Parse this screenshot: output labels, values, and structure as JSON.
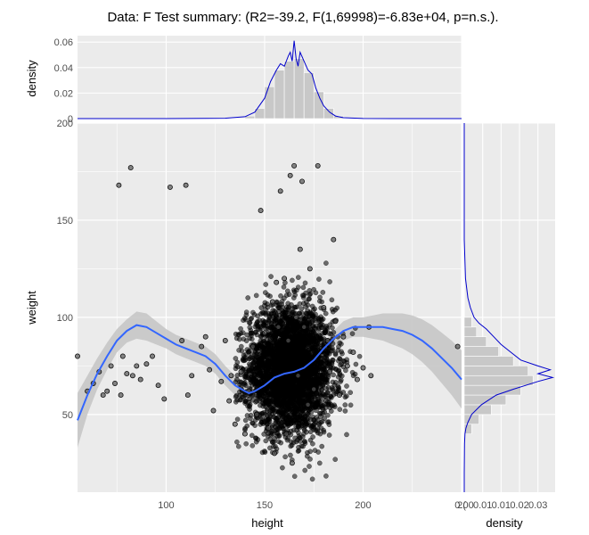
{
  "chart_data": {
    "type": "scatter",
    "title": "Data: F Test summary: (R2=-39.2, F(1,69998)=-6.83e+04, p=n.s.).",
    "main": {
      "xlabel": "height",
      "ylabel": "weight",
      "x_ticks": [
        "100",
        "150",
        "200",
        "2("
      ],
      "y_ticks": [
        "50",
        "100",
        "150",
        "200"
      ],
      "xlim": [
        55,
        250
      ],
      "ylim": [
        10,
        200
      ],
      "grid": true,
      "points_approx": [
        [
          55,
          80
        ],
        [
          60,
          62
        ],
        [
          63,
          66
        ],
        [
          66,
          72
        ],
        [
          68,
          60
        ],
        [
          70,
          62
        ],
        [
          72,
          75
        ],
        [
          74,
          66
        ],
        [
          76,
          168
        ],
        [
          77,
          60
        ],
        [
          78,
          80
        ],
        [
          80,
          71
        ],
        [
          82,
          177
        ],
        [
          83,
          70
        ],
        [
          85,
          75
        ],
        [
          87,
          68
        ],
        [
          90,
          76
        ],
        [
          93,
          80
        ],
        [
          96,
          65
        ],
        [
          99,
          58
        ],
        [
          102,
          167
        ],
        [
          108,
          88
        ],
        [
          110,
          168
        ],
        [
          111,
          60
        ],
        [
          113,
          70
        ],
        [
          118,
          85
        ],
        [
          120,
          90
        ],
        [
          122,
          73
        ],
        [
          124,
          52
        ],
        [
          128,
          67
        ],
        [
          130,
          88
        ],
        [
          132,
          57
        ],
        [
          133,
          70
        ],
        [
          135,
          45
        ],
        [
          138,
          72
        ],
        [
          140,
          40
        ],
        [
          142,
          62
        ],
        [
          144,
          85
        ],
        [
          146,
          50
        ],
        [
          148,
          155
        ],
        [
          150,
          92
        ],
        [
          152,
          43
        ],
        [
          154,
          108
        ],
        [
          155,
          30
        ],
        [
          156,
          118
        ],
        [
          157,
          95
        ],
        [
          158,
          165
        ],
        [
          160,
          120
        ],
        [
          161,
          40
        ],
        [
          162,
          88
        ],
        [
          163,
          173
        ],
        [
          164,
          25
        ],
        [
          165,
          178
        ],
        [
          166,
          100
        ],
        [
          167,
          70
        ],
        [
          168,
          135
        ],
        [
          169,
          170
        ],
        [
          170,
          95
        ],
        [
          172,
          55
        ],
        [
          173,
          125
        ],
        [
          175,
          63
        ],
        [
          177,
          178
        ],
        [
          180,
          105
        ],
        [
          182,
          88
        ],
        [
          183,
          72
        ],
        [
          185,
          140
        ],
        [
          186,
          98
        ],
        [
          188,
          60
        ],
        [
          190,
          90
        ],
        [
          192,
          75
        ],
        [
          195,
          82
        ],
        [
          197,
          68
        ],
        [
          200,
          74
        ],
        [
          203,
          95
        ],
        [
          204,
          70
        ],
        [
          248,
          85
        ]
      ],
      "dense_cloud": {
        "x_center": 163,
        "x_sd": 11,
        "y_center": 73,
        "y_sd": 16
      },
      "smooth_line": {
        "x": [
          55,
          60,
          65,
          70,
          75,
          80,
          85,
          90,
          95,
          100,
          105,
          110,
          115,
          120,
          125,
          130,
          135,
          140,
          142,
          145,
          150,
          155,
          160,
          165,
          170,
          175,
          180,
          185,
          190,
          195,
          200,
          205,
          210,
          215,
          220,
          225,
          230,
          235,
          240,
          245,
          250
        ],
        "y": [
          47,
          60,
          71,
          80,
          88,
          93,
          96,
          95,
          92,
          89,
          86,
          84,
          82,
          80,
          76,
          70,
          65,
          62,
          61,
          62,
          65,
          69,
          71,
          72,
          74,
          78,
          84,
          89,
          93,
          95,
          95,
          95,
          95,
          94,
          93,
          91,
          88,
          84,
          79,
          74,
          68
        ],
        "band_half_width": [
          14,
          10,
          8,
          7,
          6,
          6,
          7,
          7,
          6,
          5,
          5,
          5,
          5,
          5,
          5,
          5,
          5,
          4,
          3,
          3,
          3,
          3,
          2,
          2,
          2,
          2,
          3,
          4,
          5,
          5,
          5,
          6,
          7,
          8,
          9,
          10,
          11,
          12,
          13,
          14,
          15
        ]
      }
    },
    "top": {
      "ylabel": "density",
      "y_ticks": [
        "0",
        "0.02",
        "0.04",
        "0.06"
      ],
      "ylim": [
        0,
        0.065
      ],
      "hist_bins": [
        [
          140,
          145,
          0.002
        ],
        [
          145,
          150,
          0.008
        ],
        [
          150,
          155,
          0.025
        ],
        [
          155,
          160,
          0.038
        ],
        [
          160,
          165,
          0.045
        ],
        [
          165,
          170,
          0.047
        ],
        [
          170,
          175,
          0.036
        ],
        [
          175,
          180,
          0.021
        ],
        [
          180,
          185,
          0.008
        ],
        [
          185,
          190,
          0.002
        ]
      ],
      "density_line": {
        "x": [
          55,
          100,
          130,
          140,
          145,
          150,
          153,
          156,
          158,
          160,
          162,
          163,
          164,
          165,
          166,
          167,
          168,
          170,
          172,
          174,
          176,
          178,
          180,
          183,
          186,
          190,
          200,
          215,
          250
        ],
        "y": [
          0,
          0,
          0.0003,
          0.0015,
          0.005,
          0.016,
          0.029,
          0.038,
          0.043,
          0.041,
          0.049,
          0.052,
          0.045,
          0.061,
          0.047,
          0.041,
          0.052,
          0.045,
          0.038,
          0.035,
          0.024,
          0.016,
          0.01,
          0.005,
          0.002,
          0.0007,
          0.0001,
          0,
          0
        ]
      }
    },
    "right": {
      "xlabel": "density",
      "x_ticks": [
        "0.00",
        "0.01",
        "0.01",
        "0.02",
        "0.03"
      ],
      "x_tick_values": [
        0.0,
        0.0075,
        0.015,
        0.0225,
        0.03
      ],
      "xlim": [
        0,
        0.037
      ],
      "hist_bins": [
        [
          40,
          45,
          0.003
        ],
        [
          45,
          50,
          0.006
        ],
        [
          50,
          55,
          0.011
        ],
        [
          55,
          60,
          0.017
        ],
        [
          60,
          65,
          0.023
        ],
        [
          65,
          70,
          0.028
        ],
        [
          70,
          75,
          0.026
        ],
        [
          75,
          80,
          0.02
        ],
        [
          80,
          85,
          0.014
        ],
        [
          85,
          90,
          0.009
        ],
        [
          90,
          95,
          0.005
        ],
        [
          95,
          100,
          0.003
        ]
      ],
      "density_line": {
        "y": [
          200,
          140,
          120,
          110,
          105,
          100,
          97,
          94,
          90,
          86,
          82,
          78,
          75,
          73,
          71,
          69,
          67,
          65,
          63,
          60,
          55,
          50,
          46,
          43,
          40,
          35,
          20,
          10
        ],
        "x": [
          0,
          0,
          0.0005,
          0.0015,
          0.0025,
          0.004,
          0.006,
          0.009,
          0.012,
          0.015,
          0.019,
          0.023,
          0.03,
          0.035,
          0.03,
          0.036,
          0.03,
          0.025,
          0.02,
          0.013,
          0.007,
          0.003,
          0.0015,
          0.0007,
          0.0003,
          0.0001,
          0,
          0
        ]
      }
    },
    "colors": {
      "panel_background": "#ebebeb",
      "grid": "#ffffff",
      "points": "#000000",
      "smooth_line": "#3366ff",
      "band": "#c4c4c4",
      "histogram": "#c8c8c8",
      "density_line": "#0000cc"
    }
  }
}
